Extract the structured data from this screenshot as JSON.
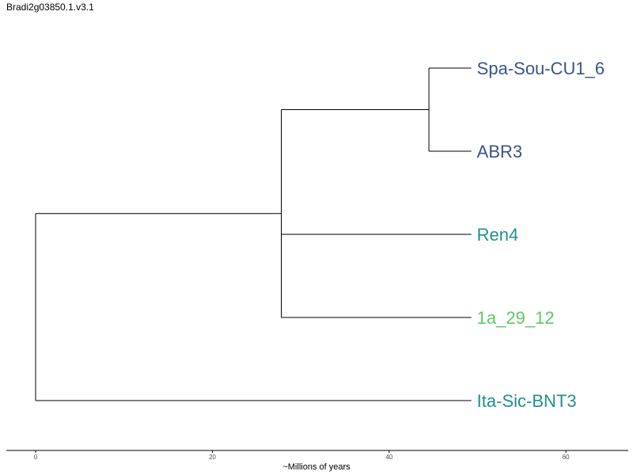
{
  "title": "Bradi2g03850.1.v3.1",
  "axis": {
    "label": "~Millions of years",
    "ticks": [
      0,
      20,
      40,
      60
    ],
    "range": [
      0,
      67
    ]
  },
  "tree": {
    "root_x": 0,
    "leaves": [
      {
        "name": "Spa-Sou-CU1_6",
        "color": "#3b528b"
      },
      {
        "name": "ABR3",
        "color": "#3b528b"
      },
      {
        "name": "Ren4",
        "color": "#21908c"
      },
      {
        "name": "1a_29_12",
        "color": "#5ec962"
      },
      {
        "name": "Ita-Sic-BNT3",
        "color": "#21908c"
      }
    ],
    "nodes": {
      "root": {
        "x": 0,
        "children": [
          "n1",
          "Ita-Sic-BNT3"
        ]
      },
      "n1": {
        "x": 27.8,
        "children": [
          "n2",
          "Ren4",
          "1a_29_12"
        ]
      },
      "n2": {
        "x": 44.5,
        "children": [
          "Spa-Sou-CU1_6",
          "ABR3"
        ]
      }
    },
    "tip_x": 49.3
  }
}
